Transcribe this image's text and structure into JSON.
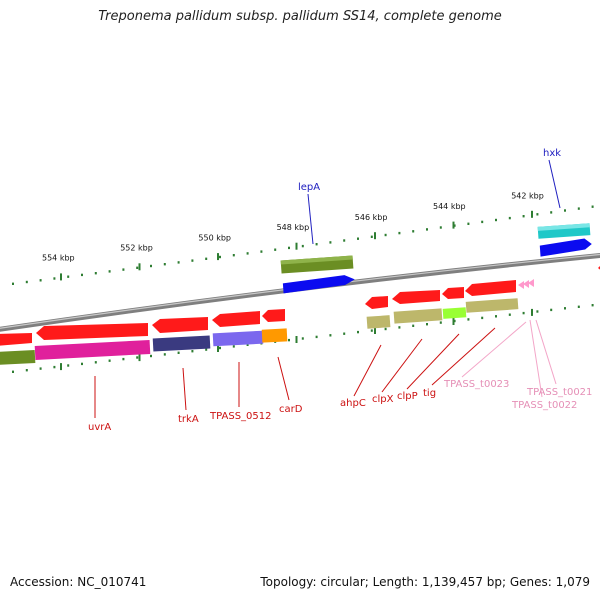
{
  "title": "Treponema pallidum subsp. pallidum SS14, complete genome",
  "footer": {
    "accession": "Accession: NC_010741",
    "topology": "Topology: circular; Length: 1,139,457 bp; Genes: 1,079"
  },
  "ticks": [
    {
      "label": "554 kbp",
      "kbp": 554
    },
    {
      "label": "552 kbp",
      "kbp": 552
    },
    {
      "label": "550 kbp",
      "kbp": 550
    },
    {
      "label": "548 kbp",
      "kbp": 548
    },
    {
      "label": "546 kbp",
      "kbp": 546
    },
    {
      "label": "544 kbp",
      "kbp": 544
    },
    {
      "label": "542 kbp",
      "kbp": 542
    }
  ],
  "gene_labels": [
    {
      "text": "lepA",
      "color": "#2020c0"
    },
    {
      "text": "hxk",
      "color": "#2020c0"
    },
    {
      "text": "uvrA",
      "color": "#cc1111"
    },
    {
      "text": "trkA",
      "color": "#cc1111"
    },
    {
      "text": "TPASS_0512",
      "color": "#cc1111"
    },
    {
      "text": "carD",
      "color": "#cc1111"
    },
    {
      "text": "ahpC",
      "color": "#cc1111"
    },
    {
      "text": "clpX",
      "color": "#cc1111"
    },
    {
      "text": "clpP",
      "color": "#cc1111"
    },
    {
      "text": "tig",
      "color": "#cc1111"
    },
    {
      "text": "TPASS_t0023",
      "color": "#e58fb6"
    },
    {
      "text": "TPASS_t0021",
      "color": "#e58fb6"
    },
    {
      "text": "TPASS_t0022",
      "color": "#e58fb6"
    }
  ],
  "colors": {
    "cds_forward": "#ff1a1a",
    "cds_reverse_blue": "#0b0bf0",
    "cog_olive": "#6b8e23",
    "cog_magenta": "#e0209c",
    "cog_navy": "#3a3a80",
    "cog_slate": "#7b68ee",
    "cog_orange": "#ff9900",
    "cog_khaki": "#bdb76b",
    "cog_lime": "#99ff33",
    "cog_teal": "#20d0d0",
    "trna": "#ff99cc",
    "backbone": "#8a8a8a",
    "tick_dots": "#2e7d32"
  }
}
